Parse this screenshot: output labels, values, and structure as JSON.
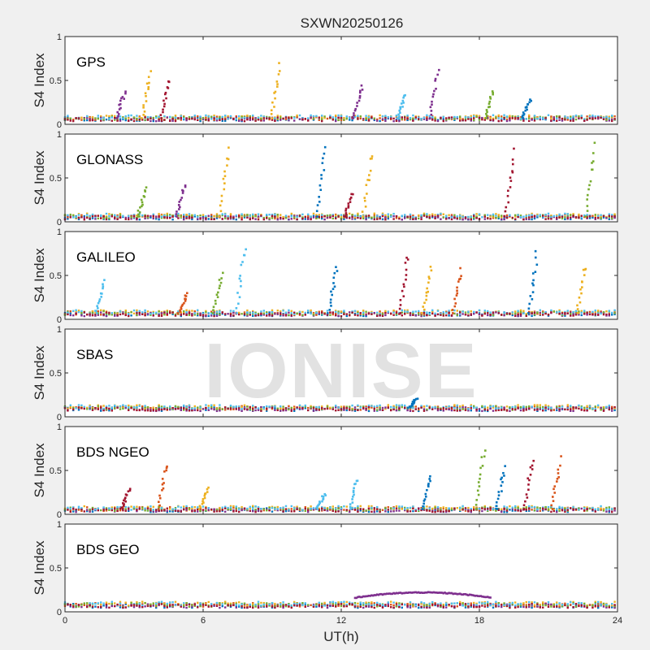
{
  "chart_data": {
    "type": "scatter",
    "title": "SXWN20250126",
    "xlabel": "UT(h)",
    "ylabel": "S4 Index",
    "xlim": [
      0,
      24
    ],
    "ylim": [
      0,
      1
    ],
    "x_ticks": [
      0,
      6,
      12,
      18,
      24
    ],
    "y_ticks": [
      0,
      0.5,
      1
    ],
    "watermark": "IONISE",
    "colors": [
      "#0072bd",
      "#d95319",
      "#edb120",
      "#7e2f8e",
      "#77ac30",
      "#4dbeee",
      "#a2142f"
    ],
    "panels": [
      {
        "name": "GPS",
        "background": 0.07,
        "spikes": [
          {
            "x": 2.6,
            "peak": 0.4,
            "color": 3
          },
          {
            "x": 3.7,
            "peak": 0.62,
            "color": 2
          },
          {
            "x": 4.5,
            "peak": 0.55,
            "color": 6
          },
          {
            "x": 9.3,
            "peak": 0.7,
            "color": 2
          },
          {
            "x": 12.9,
            "peak": 0.45,
            "color": 3
          },
          {
            "x": 14.8,
            "peak": 0.35,
            "color": 5
          },
          {
            "x": 16.2,
            "peak": 0.63,
            "color": 3
          },
          {
            "x": 18.6,
            "peak": 0.4,
            "color": 4
          },
          {
            "x": 20.2,
            "peak": 0.3,
            "color": 0
          }
        ]
      },
      {
        "name": "GLONASS",
        "background": 0.06,
        "spikes": [
          {
            "x": 3.5,
            "peak": 0.4,
            "color": 4
          },
          {
            "x": 5.2,
            "peak": 0.45,
            "color": 3
          },
          {
            "x": 7.1,
            "peak": 0.9,
            "color": 2
          },
          {
            "x": 11.3,
            "peak": 0.9,
            "color": 0
          },
          {
            "x": 12.5,
            "peak": 0.35,
            "color": 6
          },
          {
            "x": 13.3,
            "peak": 0.85,
            "color": 2
          },
          {
            "x": 19.5,
            "peak": 0.85,
            "color": 6
          },
          {
            "x": 23.0,
            "peak": 0.93,
            "color": 4
          }
        ]
      },
      {
        "name": "GALILEO",
        "background": 0.07,
        "spikes": [
          {
            "x": 1.7,
            "peak": 0.45,
            "color": 5
          },
          {
            "x": 5.3,
            "peak": 0.3,
            "color": 1
          },
          {
            "x": 6.8,
            "peak": 0.55,
            "color": 4
          },
          {
            "x": 7.8,
            "peak": 0.88,
            "color": 5
          },
          {
            "x": 11.8,
            "peak": 0.63,
            "color": 0
          },
          {
            "x": 14.9,
            "peak": 0.75,
            "color": 6
          },
          {
            "x": 15.9,
            "peak": 0.6,
            "color": 2
          },
          {
            "x": 17.2,
            "peak": 0.6,
            "color": 1
          },
          {
            "x": 20.5,
            "peak": 0.78,
            "color": 0
          },
          {
            "x": 22.6,
            "peak": 0.66,
            "color": 2
          }
        ]
      },
      {
        "name": "SBAS",
        "background": 0.1,
        "spikes": [
          {
            "x": 15.3,
            "peak": 0.22,
            "color": 0
          }
        ]
      },
      {
        "name": "BDS NGEO",
        "background": 0.06,
        "spikes": [
          {
            "x": 2.8,
            "peak": 0.3,
            "color": 6
          },
          {
            "x": 4.4,
            "peak": 0.62,
            "color": 1
          },
          {
            "x": 6.2,
            "peak": 0.32,
            "color": 2
          },
          {
            "x": 11.3,
            "peak": 0.25,
            "color": 5
          },
          {
            "x": 12.7,
            "peak": 0.43,
            "color": 5
          },
          {
            "x": 15.9,
            "peak": 0.48,
            "color": 0
          },
          {
            "x": 18.2,
            "peak": 0.78,
            "color": 4
          },
          {
            "x": 19.1,
            "peak": 0.57,
            "color": 0
          },
          {
            "x": 20.3,
            "peak": 0.68,
            "color": 6
          },
          {
            "x": 21.5,
            "peak": 0.67,
            "color": 1
          }
        ]
      },
      {
        "name": "BDS GEO",
        "background": 0.08,
        "spikes": [],
        "arcs": [
          {
            "x_start": 12.6,
            "x_end": 18.5,
            "peak": 0.22,
            "color": 3
          }
        ]
      }
    ]
  }
}
